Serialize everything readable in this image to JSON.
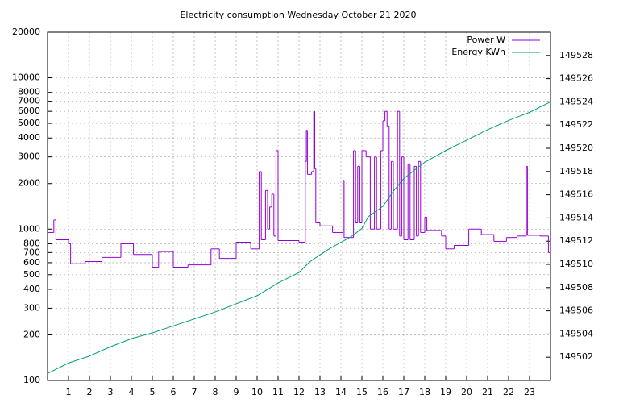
{
  "chart_data": {
    "type": "line",
    "title": "Electricity consumption Wednesday October 21 2020",
    "xlim": [
      0,
      24
    ],
    "xticks": [
      1,
      2,
      3,
      4,
      5,
      6,
      7,
      8,
      9,
      10,
      11,
      12,
      13,
      14,
      15,
      16,
      17,
      18,
      19,
      20,
      21,
      22,
      23
    ],
    "ylim": [
      100,
      20000
    ],
    "ylog": true,
    "yticks": [
      100,
      200,
      300,
      400,
      500,
      600,
      700,
      800,
      1000,
      2000,
      3000,
      4000,
      5000,
      6000,
      7000,
      8000,
      10000,
      20000
    ],
    "y2lim": [
      149500,
      149530
    ],
    "y2ticks": [
      149502,
      149504,
      149506,
      149508,
      149510,
      149512,
      149514,
      149516,
      149518,
      149520,
      149522,
      149524,
      149526,
      149528
    ],
    "grid": true,
    "legend": "top-right",
    "series": [
      {
        "name": "Power W",
        "color": "#9400d3",
        "style": "steps",
        "x": [
          0,
          0.3,
          0.4,
          1.0,
          1.1,
          1.8,
          2.6,
          3.5,
          4.1,
          5.0,
          5.3,
          6.0,
          6.7,
          7.8,
          8.2,
          9.0,
          9.7,
          10.1,
          10.2,
          10.4,
          10.5,
          10.6,
          10.7,
          10.8,
          10.9,
          11.0,
          12.0,
          12.3,
          12.35,
          12.4,
          12.6,
          12.7,
          12.75,
          12.8,
          13.0,
          13.6,
          14.1,
          14.15,
          14.2,
          14.6,
          14.7,
          14.8,
          14.9,
          15.0,
          15.2,
          15.4,
          15.6,
          15.7,
          15.9,
          16.0,
          16.1,
          16.2,
          16.3,
          16.4,
          16.5,
          16.7,
          16.8,
          16.9,
          17.0,
          17.2,
          17.3,
          17.5,
          17.6,
          17.7,
          17.8,
          18.0,
          18.1,
          18.8,
          19.0,
          19.4,
          20.1,
          20.7,
          21.3,
          21.9,
          22.4,
          22.85,
          22.9,
          23.5,
          23.9
        ],
        "values": [
          950,
          1150,
          850,
          800,
          590,
          610,
          650,
          800,
          680,
          560,
          710,
          560,
          580,
          740,
          640,
          820,
          740,
          2400,
          850,
          1800,
          1000,
          1400,
          1700,
          900,
          3300,
          840,
          820,
          2800,
          4500,
          2300,
          2400,
          6000,
          2500,
          1100,
          1050,
          950,
          2100,
          880,
          880,
          3300,
          1100,
          2600,
          1100,
          3300,
          3000,
          1000,
          3000,
          1000,
          3300,
          5200,
          6000,
          4800,
          1000,
          2800,
          1000,
          6000,
          900,
          3000,
          850,
          2700,
          850,
          2600,
          900,
          2800,
          950,
          1200,
          980,
          900,
          740,
          780,
          1000,
          920,
          830,
          880,
          900,
          2600,
          910,
          900,
          700
        ]
      },
      {
        "name": "Energy KWh",
        "color": "#009e73",
        "axis": "y2",
        "x": [
          0,
          1,
          2,
          3,
          4,
          5,
          6,
          7,
          8,
          9,
          10,
          11,
          12,
          12.5,
          12.9,
          13.5,
          14,
          14.5,
          15,
          15.3,
          16,
          16.5,
          17,
          17.5,
          18,
          19,
          20,
          21,
          22,
          23,
          24
        ],
        "values": [
          149500.6,
          149501.5,
          149502.1,
          149502.9,
          149503.6,
          149504.1,
          149504.7,
          149505.3,
          149505.9,
          149506.6,
          149507.3,
          149508.4,
          149509.3,
          149510.2,
          149510.7,
          149511.4,
          149511.9,
          149512.4,
          149513.1,
          149514.1,
          149515.0,
          149516.3,
          149517.4,
          149518.1,
          149518.8,
          149519.8,
          149520.7,
          149521.6,
          149522.4,
          149523.1,
          149524.0
        ]
      }
    ]
  }
}
